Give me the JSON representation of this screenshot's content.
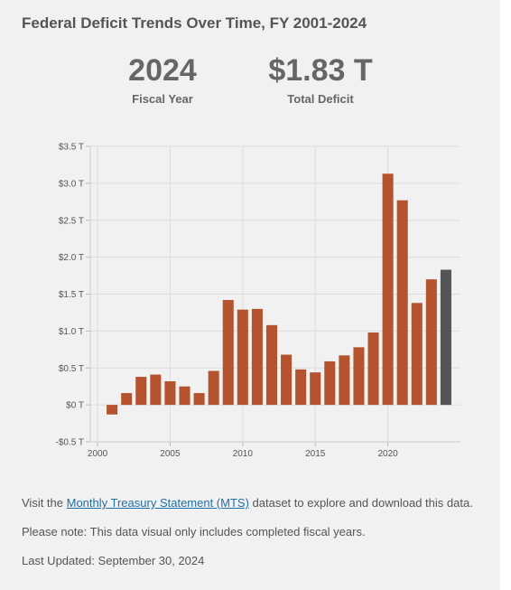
{
  "title": "Federal Deficit Trends Over Time, FY 2001-2024",
  "stats": {
    "year_value": "2024",
    "year_label": "Fiscal Year",
    "total_value": "$1.83 T",
    "total_label": "Total Deficit"
  },
  "colors": {
    "bar": "#b5532e",
    "highlight": "#555555",
    "grid": "#dcdcdc",
    "text": "#555555",
    "link": "#1f6fa8"
  },
  "chart_data": {
    "type": "bar",
    "title": "Federal Deficit Trends Over Time, FY 2001-2024",
    "x": [
      2001,
      2002,
      2003,
      2004,
      2005,
      2006,
      2007,
      2008,
      2009,
      2010,
      2011,
      2012,
      2013,
      2014,
      2015,
      2016,
      2017,
      2018,
      2019,
      2020,
      2021,
      2022,
      2023,
      2024
    ],
    "values": [
      -0.13,
      0.16,
      0.38,
      0.41,
      0.32,
      0.25,
      0.16,
      0.46,
      1.42,
      1.29,
      1.3,
      1.08,
      0.68,
      0.48,
      0.44,
      0.59,
      0.67,
      0.78,
      0.98,
      3.13,
      2.77,
      1.38,
      1.7,
      1.83
    ],
    "highlight_x": 2024,
    "ylim": [
      -0.5,
      3.5
    ],
    "y_ticks": [
      -0.5,
      0,
      0.5,
      1.0,
      1.5,
      2.0,
      2.5,
      3.0,
      3.5
    ],
    "y_tick_labels": [
      "-$0.5 T",
      "$0 T",
      "$0.5 T",
      "$1.0 T",
      "$1.5 T",
      "$2.0 T",
      "$2.5 T",
      "$3.0 T",
      "$3.5 T"
    ],
    "x_ticks": [
      2000,
      2005,
      2010,
      2015,
      2020
    ],
    "x_tick_labels": [
      "2000",
      "2005",
      "2010",
      "2015",
      "2020"
    ],
    "xlim": [
      1999.5,
      2025
    ],
    "grid": true,
    "xlabel": "",
    "ylabel": ""
  },
  "footer": {
    "line1_before": "Visit the ",
    "line1_link": "Monthly Treasury Statement (MTS)",
    "line1_after": " dataset to explore and download this data.",
    "line2": "Please note: This data visual only includes completed fiscal years.",
    "line3": "Last Updated: September 30, 2024"
  }
}
